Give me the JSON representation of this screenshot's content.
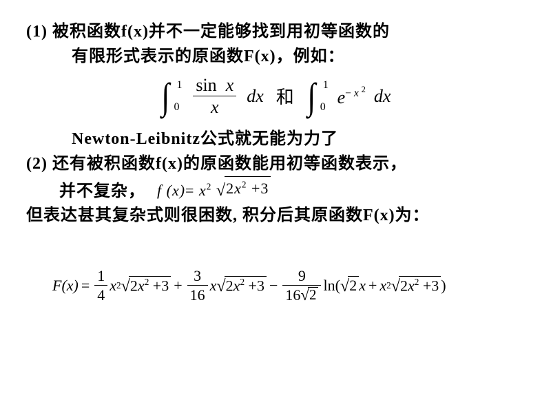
{
  "p1_line1": "(1) 被积函数f(x)并不一定能够找到用初等函数的",
  "p1_line2": "有限形式表示的原函数F(x)，例如：",
  "int1": {
    "upper": "1",
    "lower": "0",
    "num_fn": "sin",
    "num_var": "x",
    "den": "x",
    "dx": "dx"
  },
  "mid_word": "和",
  "int2": {
    "upper": "1",
    "lower": "0",
    "base": "e",
    "exp_prefix": "−",
    "exp_var": "x",
    "exp_pow": "2",
    "dx": "dx"
  },
  "newton_line": "Newton-Leibnitz公式就无能为力了",
  "p2_line1": "(2) 还有被积函数f(x)的原函数能用初等函数表示，",
  "p2_line2": "并不复杂，",
  "fx": {
    "lhs": "f (x)",
    "eq": "=",
    "x": "x",
    "pow2": "2",
    "two": "2",
    "plus3": "+3"
  },
  "overlap_line": "但表达甚其复杂式则很困数, 积分后其原函数F(x)为：",
  "Fx": {
    "lhs": "F(x)",
    "eq": "=",
    "frac1_num": "1",
    "frac1_den": "4",
    "x": "x",
    "pow2": "2",
    "two": "2",
    "plus3": "+3",
    "plus": "+",
    "frac2_num": "3",
    "frac2_den": "16",
    "minus": "−",
    "frac3_num": "9",
    "frac3_den_a": "16",
    "frac3_den_rad": "2",
    "ln": "ln",
    "lpar": "(",
    "rpar": ")",
    "root2x": "2",
    "xvar": "x"
  }
}
